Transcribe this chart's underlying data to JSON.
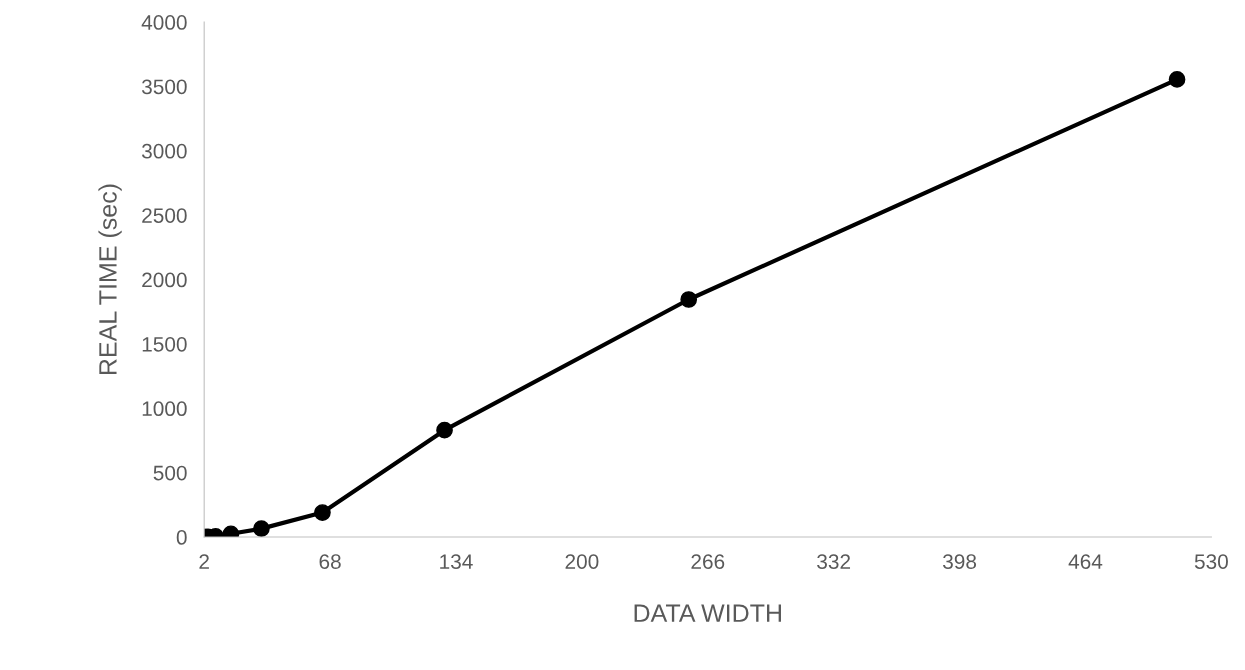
{
  "chart_data": {
    "type": "line",
    "xlabel": "DATA WIDTH",
    "ylabel": "REAL TIME (sec)",
    "x": [
      2,
      4,
      8,
      16,
      32,
      64,
      128,
      256,
      512
    ],
    "series": [
      {
        "color": "#000000",
        "values": [
          1,
          2,
          5,
          25,
          65,
          190,
          830,
          1845,
          3555
        ]
      }
    ],
    "xlim": [
      2,
      530
    ],
    "xticks": [
      2,
      68,
      134,
      200,
      266,
      332,
      398,
      464,
      530
    ],
    "ylim": [
      0,
      4000
    ],
    "yticks": [
      0,
      500,
      1000,
      1500,
      2000,
      2500,
      3000,
      3500,
      4000
    ],
    "grid": false,
    "marker": "circle",
    "line_style": "solid"
  }
}
